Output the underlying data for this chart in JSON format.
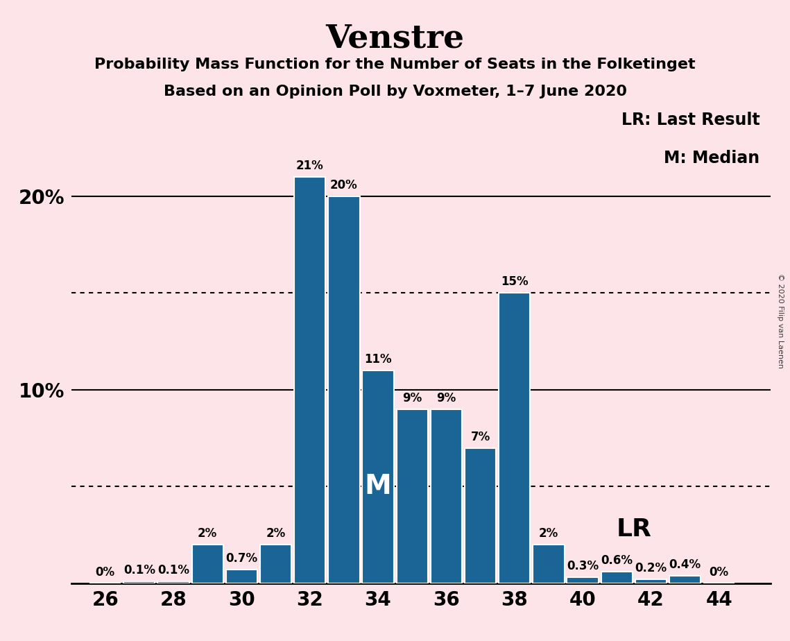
{
  "title": "Venstre",
  "subtitle1": "Probability Mass Function for the Number of Seats in the Folketinget",
  "subtitle2": "Based on an Opinion Poll by Voxmeter, 1–7 June 2020",
  "copyright": "© 2020 Filip van Laenen",
  "seats": [
    26,
    27,
    28,
    29,
    30,
    31,
    32,
    33,
    34,
    35,
    36,
    37,
    38,
    39,
    40,
    41,
    42,
    43,
    44
  ],
  "probabilities": [
    0.0,
    0.1,
    0.1,
    2.0,
    0.7,
    2.0,
    21.0,
    20.0,
    11.0,
    9.0,
    9.0,
    7.0,
    15.0,
    2.0,
    0.3,
    0.6,
    0.2,
    0.4,
    0.0
  ],
  "labels": [
    "0%",
    "0.1%",
    "0.1%",
    "2%",
    "0.7%",
    "2%",
    "21%",
    "20%",
    "11%",
    "9%",
    "9%",
    "7%",
    "15%",
    "2%",
    "0.3%",
    "0.6%",
    "0.2%",
    "0.4%",
    "0%"
  ],
  "bar_color": "#1a6596",
  "background_color": "#fce4e8",
  "median_seat": 34,
  "last_result_seat": 39,
  "dotted_lines": [
    5.0,
    15.0
  ],
  "solid_lines": [
    10.0,
    20.0
  ],
  "ylim": [
    0,
    25
  ],
  "legend_lr": "LR: Last Result",
  "legend_m": "M: Median",
  "lr_label": "LR",
  "m_label": "M",
  "label_fontsize": 12,
  "axis_fontsize": 20,
  "title_fontsize": 34,
  "subtitle_fontsize": 16
}
